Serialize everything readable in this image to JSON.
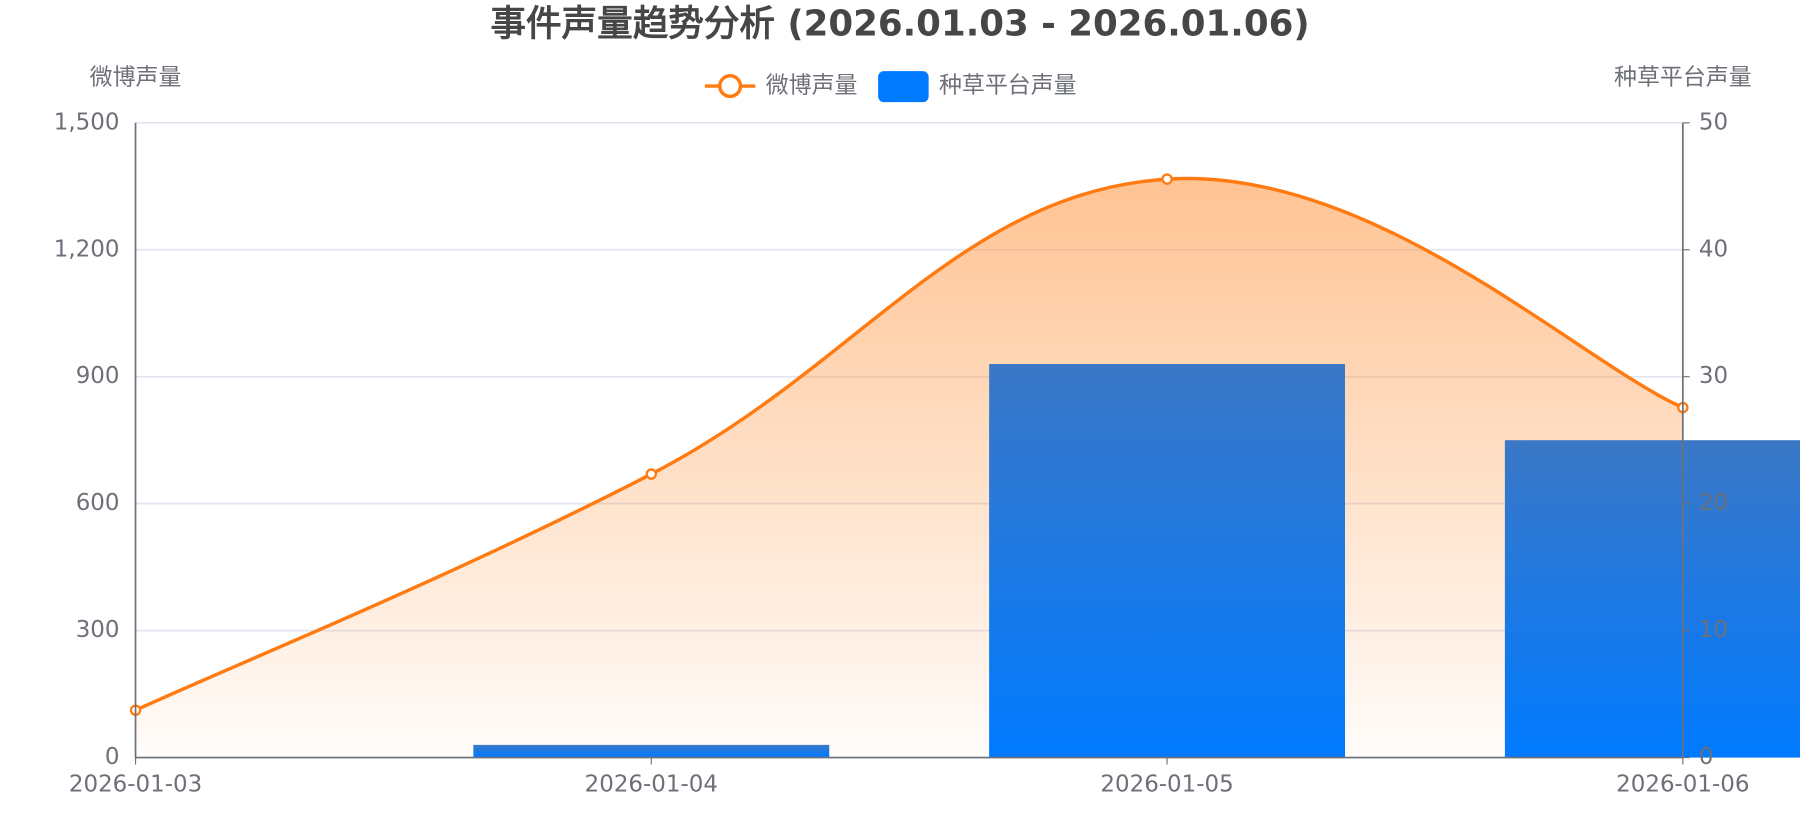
{
  "chart_data": {
    "type": "combo",
    "title": "事件声量趋势分析 (2026.01.03 - 2026.01.06)",
    "y_label": "微博声量",
    "y2_label": "种草平台声量",
    "categories": [
      "2026-01-03",
      "2026-01-04",
      "2026-01-05",
      "2026-01-06"
    ],
    "series": [
      {
        "name": "微博声量",
        "type": "line",
        "color": "#ff7a10",
        "values": [
          112,
          670,
          1367,
          827
        ]
      },
      {
        "name": "种草平台声量",
        "type": "bar",
        "axis": "y2",
        "color": "#007aff",
        "values": [
          0,
          1,
          31,
          25
        ]
      }
    ],
    "ylim": [
      0,
      1500
    ],
    "yticks": [
      0,
      300,
      600,
      900,
      {
        "value": 1200,
        "label": "1,200"
      },
      {
        "value": 1500,
        "label": "1,500"
      }
    ],
    "y2lim": [
      0,
      50
    ],
    "y2ticks": [
      0,
      10,
      20,
      30,
      40,
      50
    ],
    "grid": true
  }
}
